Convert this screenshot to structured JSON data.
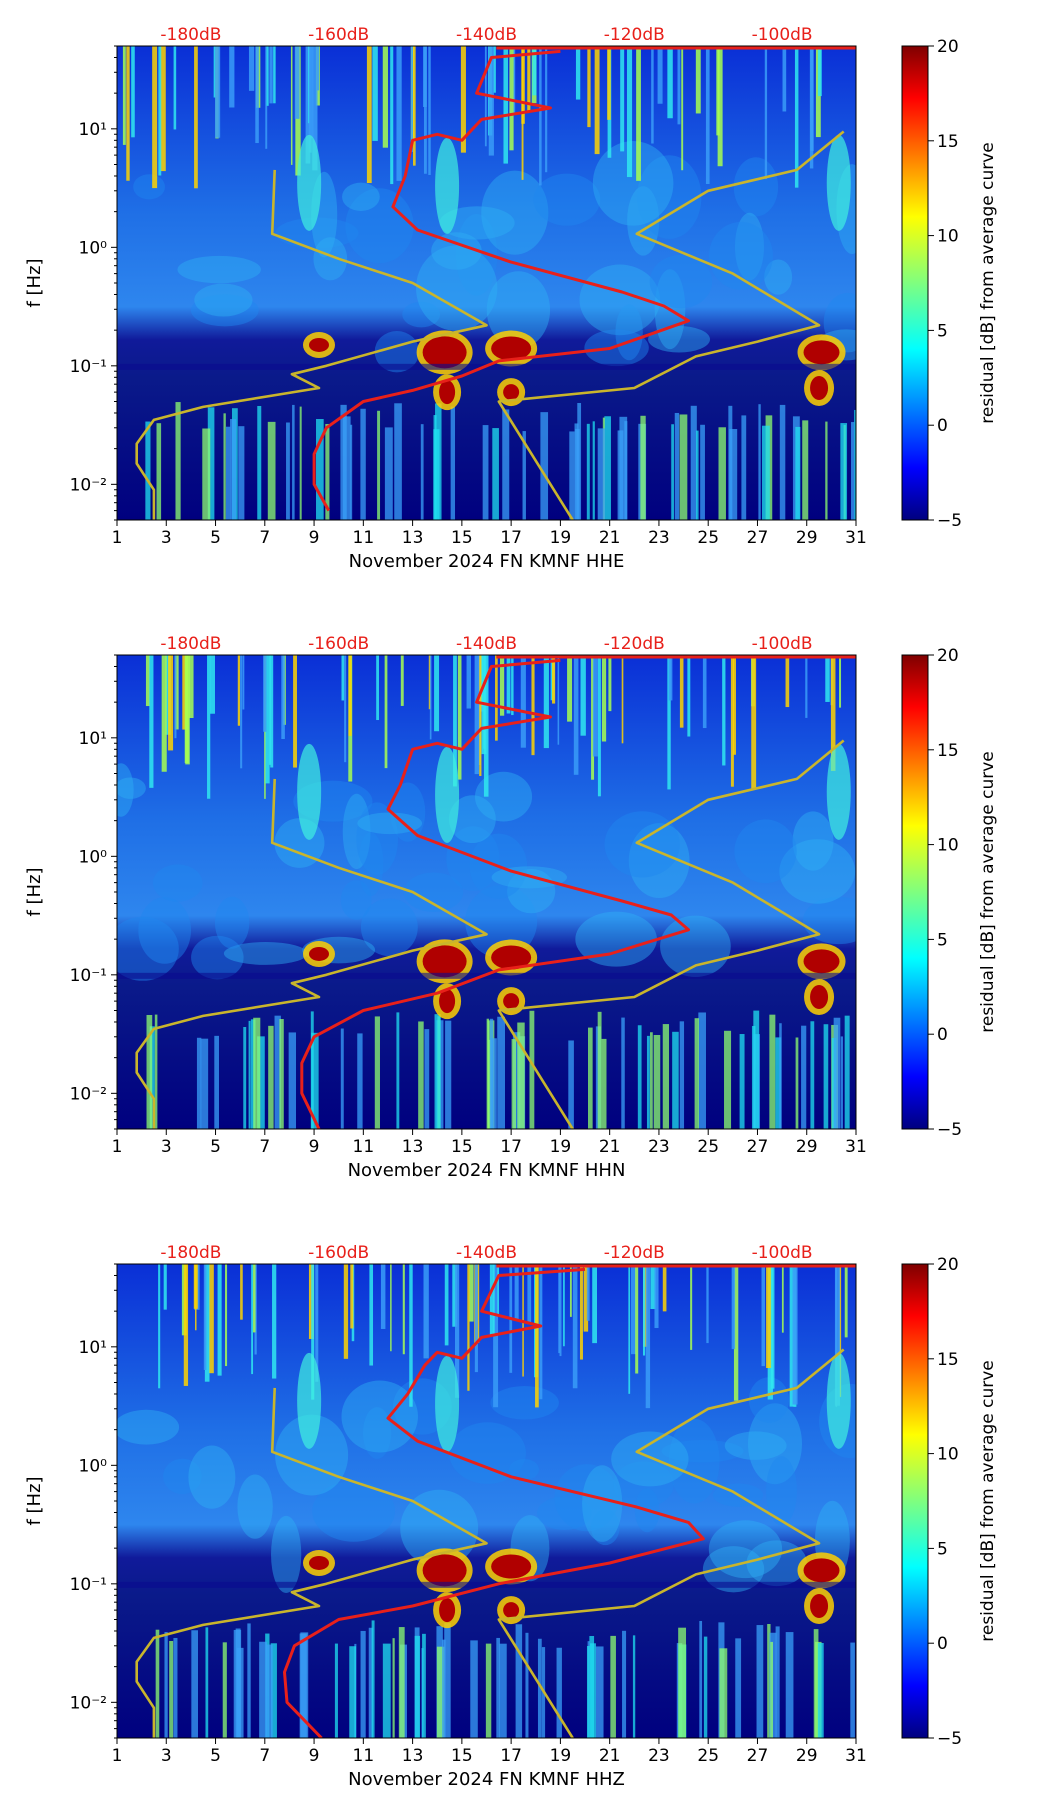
{
  "figure": {
    "title": ""
  },
  "chart_data": [
    {
      "type": "heatmap",
      "xlabel": "November 2024 FN KMNF  HHE",
      "ylabel": "f [Hz]",
      "xlim": [
        1,
        31
      ],
      "ylim": [
        0.005,
        50
      ],
      "yscale": "log",
      "x_ticks": [
        "1",
        "3",
        "5",
        "7",
        "9",
        "11",
        "13",
        "15",
        "17",
        "19",
        "21",
        "23",
        "25",
        "27",
        "29",
        "31"
      ],
      "y_ticks": [
        "10⁻²",
        "10⁻¹",
        "10⁰",
        "10¹"
      ],
      "top_labels": [
        "-180dB",
        "-160dB",
        "-140dB",
        "-120dB",
        "-100dB"
      ],
      "colorbar": {
        "label": "residual [dB] from average curve",
        "min": -5,
        "max": 20,
        "ticks": [
          "20",
          "15",
          "10",
          "5",
          "0",
          "−5"
        ]
      },
      "series": [
        {
          "name": "average PSD curve",
          "color": "#e8201a",
          "values": [
            [
              19,
              45
            ],
            [
              16.2,
              40
            ],
            [
              15.6,
              20
            ],
            [
              18.6,
              15
            ],
            [
              15.8,
              12
            ],
            [
              15,
              8
            ],
            [
              14,
              9
            ],
            [
              13,
              8
            ],
            [
              12.7,
              4
            ],
            [
              12.2,
              2.2
            ],
            [
              13.2,
              1.4
            ],
            [
              17,
              0.75
            ],
            [
              21.5,
              0.42
            ],
            [
              23.2,
              0.32
            ],
            [
              24.2,
              0.24
            ],
            [
              21,
              0.14
            ],
            [
              16.5,
              0.11
            ],
            [
              15,
              0.082
            ],
            [
              13,
              0.062
            ],
            [
              11,
              0.05
            ],
            [
              9.5,
              0.03
            ],
            [
              9,
              0.018
            ],
            [
              9,
              0.01
            ],
            [
              9.6,
              0.006
            ]
          ]
        },
        {
          "name": "noise model curves",
          "color": "#c9b52c",
          "values": [
            [
              7.4,
              4.5
            ],
            [
              7.3,
              1.3
            ],
            [
              10,
              0.8
            ],
            [
              13,
              0.5
            ],
            [
              16,
              0.22
            ],
            [
              13,
              0.16
            ],
            [
              9.5,
              0.1
            ],
            [
              8.1,
              0.085
            ],
            [
              9.2,
              0.065
            ],
            [
              4.5,
              0.045
            ],
            [
              2.5,
              0.035
            ],
            [
              1.8,
              0.022
            ],
            [
              1.8,
              0.015
            ],
            [
              2.5,
              0.009
            ],
            [
              2.5,
              0.005
            ]
          ]
        },
        {
          "name": "noise model curves",
          "color": "#c9b52c",
          "values": [
            [
              30.5,
              9.5
            ],
            [
              28.6,
              4.5
            ],
            [
              25,
              3
            ],
            [
              22.1,
              1.3
            ],
            [
              26,
              0.6
            ],
            [
              29.5,
              0.22
            ],
            [
              27,
              0.16
            ],
            [
              24.5,
              0.12
            ],
            [
              22,
              0.065
            ],
            [
              16.5,
              0.05
            ],
            [
              19.5,
              0.005
            ]
          ]
        }
      ]
    },
    {
      "type": "heatmap",
      "xlabel": "November 2024 FN KMNF  HHN",
      "ylabel": "f [Hz]",
      "xlim": [
        1,
        31
      ],
      "ylim": [
        0.005,
        50
      ],
      "yscale": "log",
      "x_ticks": [
        "1",
        "3",
        "5",
        "7",
        "9",
        "11",
        "13",
        "15",
        "17",
        "19",
        "21",
        "23",
        "25",
        "27",
        "29",
        "31"
      ],
      "y_ticks": [
        "10⁻²",
        "10⁻¹",
        "10⁰",
        "10¹"
      ],
      "top_labels": [
        "-180dB",
        "-160dB",
        "-140dB",
        "-120dB",
        "-100dB"
      ],
      "colorbar": {
        "label": "residual [dB] from average curve",
        "min": -5,
        "max": 20,
        "ticks": [
          "20",
          "15",
          "10",
          "5",
          "0",
          "−5"
        ]
      },
      "series": [
        {
          "name": "average PSD curve",
          "color": "#e8201a",
          "values": [
            [
              19,
              45
            ],
            [
              16.2,
              40
            ],
            [
              15.6,
              20
            ],
            [
              18.6,
              15
            ],
            [
              15.8,
              12
            ],
            [
              15,
              8
            ],
            [
              14,
              9
            ],
            [
              13,
              8
            ],
            [
              12.5,
              4
            ],
            [
              12,
              2.5
            ],
            [
              13.2,
              1.5
            ],
            [
              17,
              0.75
            ],
            [
              21.5,
              0.42
            ],
            [
              23.5,
              0.32
            ],
            [
              24.2,
              0.24
            ],
            [
              21,
              0.15
            ],
            [
              16.5,
              0.11
            ],
            [
              14,
              0.07
            ],
            [
              11,
              0.05
            ],
            [
              9,
              0.03
            ],
            [
              8.5,
              0.018
            ],
            [
              8.5,
              0.01
            ],
            [
              9.2,
              0.005
            ]
          ]
        },
        {
          "name": "noise model curves",
          "color": "#c9b52c",
          "values": [
            [
              7.4,
              4.5
            ],
            [
              7.3,
              1.3
            ],
            [
              10,
              0.8
            ],
            [
              13,
              0.5
            ],
            [
              16,
              0.22
            ],
            [
              13,
              0.16
            ],
            [
              9.5,
              0.1
            ],
            [
              8.1,
              0.085
            ],
            [
              9.2,
              0.065
            ],
            [
              4.5,
              0.045
            ],
            [
              2.5,
              0.035
            ],
            [
              1.8,
              0.022
            ],
            [
              1.8,
              0.015
            ],
            [
              2.5,
              0.009
            ],
            [
              2.5,
              0.005
            ]
          ]
        },
        {
          "name": "noise model curves",
          "color": "#c9b52c",
          "values": [
            [
              30.5,
              9.5
            ],
            [
              28.6,
              4.5
            ],
            [
              25,
              3
            ],
            [
              22.1,
              1.3
            ],
            [
              26,
              0.6
            ],
            [
              29.5,
              0.22
            ],
            [
              27,
              0.16
            ],
            [
              24.5,
              0.12
            ],
            [
              22,
              0.065
            ],
            [
              16.5,
              0.05
            ],
            [
              19.5,
              0.005
            ]
          ]
        }
      ]
    },
    {
      "type": "heatmap",
      "xlabel": "November 2024 FN KMNF  HHZ",
      "ylabel": "f [Hz]",
      "xlim": [
        1,
        31
      ],
      "ylim": [
        0.005,
        50
      ],
      "yscale": "log",
      "x_ticks": [
        "1",
        "3",
        "5",
        "7",
        "9",
        "11",
        "13",
        "15",
        "17",
        "19",
        "21",
        "23",
        "25",
        "27",
        "29",
        "31"
      ],
      "y_ticks": [
        "10⁻²",
        "10⁻¹",
        "10⁰",
        "10¹"
      ],
      "top_labels": [
        "-180dB",
        "-160dB",
        "-140dB",
        "-120dB",
        "-100dB"
      ],
      "colorbar": {
        "label": "residual [dB] from average curve",
        "min": -5,
        "max": 20,
        "ticks": [
          "20",
          "15",
          "10",
          "5",
          "0",
          "−5"
        ]
      },
      "series": [
        {
          "name": "average PSD curve",
          "color": "#e8201a",
          "values": [
            [
              20,
              45
            ],
            [
              16.5,
              40
            ],
            [
              15.8,
              20
            ],
            [
              18.2,
              15
            ],
            [
              15.8,
              12
            ],
            [
              15,
              8
            ],
            [
              14,
              9
            ],
            [
              13.5,
              7
            ],
            [
              12.8,
              4
            ],
            [
              12,
              2.5
            ],
            [
              13.2,
              1.6
            ],
            [
              17,
              0.8
            ],
            [
              22,
              0.45
            ],
            [
              24.2,
              0.33
            ],
            [
              24.8,
              0.24
            ],
            [
              21,
              0.15
            ],
            [
              16.5,
              0.1
            ],
            [
              13,
              0.065
            ],
            [
              10,
              0.05
            ],
            [
              8.2,
              0.03
            ],
            [
              7.8,
              0.018
            ],
            [
              7.9,
              0.01
            ],
            [
              9.3,
              0.005
            ]
          ]
        },
        {
          "name": "noise model curves",
          "color": "#c9b52c",
          "values": [
            [
              7.4,
              4.5
            ],
            [
              7.3,
              1.3
            ],
            [
              10,
              0.8
            ],
            [
              13,
              0.5
            ],
            [
              16,
              0.22
            ],
            [
              13,
              0.16
            ],
            [
              9.5,
              0.1
            ],
            [
              8.1,
              0.085
            ],
            [
              9.2,
              0.065
            ],
            [
              4.5,
              0.045
            ],
            [
              2.5,
              0.035
            ],
            [
              1.8,
              0.022
            ],
            [
              1.8,
              0.015
            ],
            [
              2.5,
              0.009
            ],
            [
              2.5,
              0.005
            ]
          ]
        },
        {
          "name": "noise model curves",
          "color": "#c9b52c",
          "values": [
            [
              30.5,
              9.5
            ],
            [
              28.6,
              4.5
            ],
            [
              25,
              3
            ],
            [
              22.1,
              1.3
            ],
            [
              26,
              0.6
            ],
            [
              29.5,
              0.22
            ],
            [
              27,
              0.16
            ],
            [
              24.5,
              0.12
            ],
            [
              22,
              0.065
            ],
            [
              16.5,
              0.05
            ],
            [
              19.5,
              0.005
            ]
          ]
        }
      ]
    }
  ]
}
